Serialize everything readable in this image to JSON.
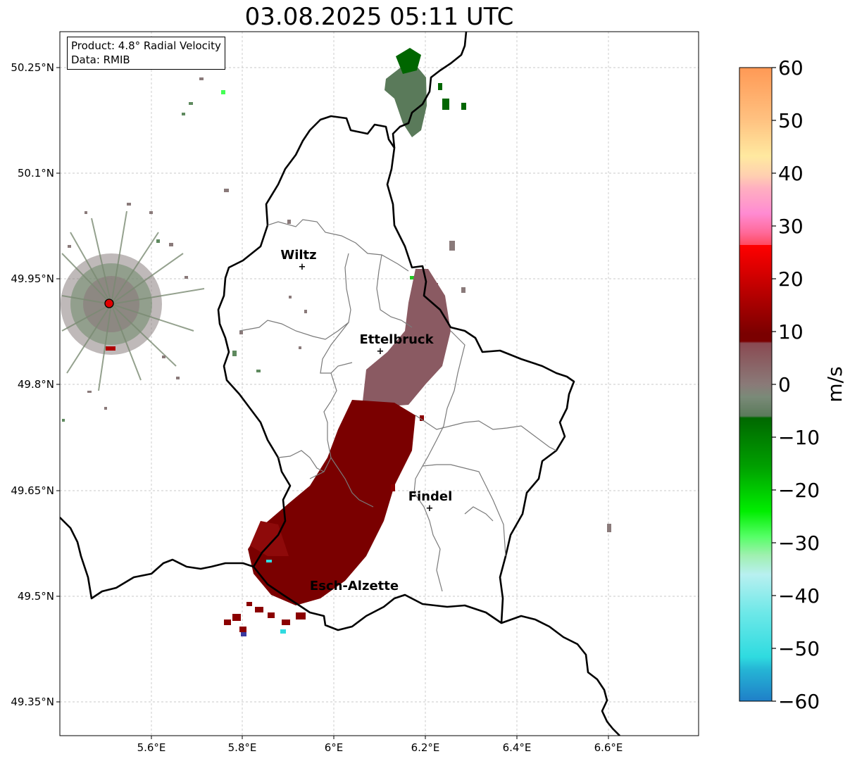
{
  "title": "03.08.2025 05:11 UTC",
  "info": {
    "product": "Product: 4.8° Radial Velocity",
    "data_source": "Data: RMIB"
  },
  "axes": {
    "x_ticks": [
      "5.6°E",
      "5.8°E",
      "6°E",
      "6.2°E",
      "6.4°E",
      "6.6°E"
    ],
    "y_ticks": [
      "50.25°N",
      "50.1°N",
      "49.95°N",
      "49.8°N",
      "49.65°N",
      "49.5°N",
      "49.35°N"
    ],
    "lon_range": [
      5.4,
      6.8
    ],
    "lat_range": [
      49.3,
      50.3
    ]
  },
  "cities": [
    {
      "name": "Wiltz",
      "lon": 5.93,
      "lat": 49.97
    },
    {
      "name": "Ettelbruck",
      "lon": 6.1,
      "lat": 49.85
    },
    {
      "name": "Findel",
      "lon": 6.21,
      "lat": 49.63
    },
    {
      "name": "Esch-Alzette",
      "lon": 5.98,
      "lat": 49.5
    }
  ],
  "radar_site": {
    "lon": 5.5,
    "lat": 49.915,
    "color": "#e00000"
  },
  "colorbar": {
    "label": "m/s",
    "min": -60,
    "max": 60,
    "ticks": [
      "60",
      "50",
      "40",
      "30",
      "20",
      "10",
      "0",
      "−10",
      "−20",
      "−30",
      "−40",
      "−50",
      "−60"
    ],
    "colors": {
      "strong_outbound": "#ff9955",
      "outbound": "#8b0000",
      "near_zero_pos": "#8a6a6e",
      "near_zero_neg": "#5f7f5f",
      "inbound": "#007a00",
      "strong_inbound": "#2fdbe0"
    }
  }
}
